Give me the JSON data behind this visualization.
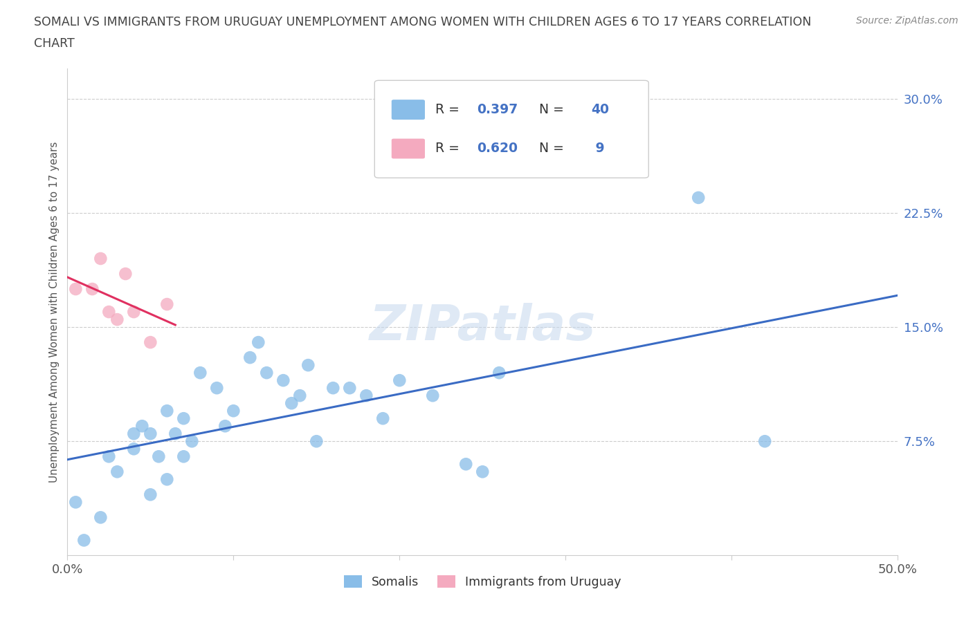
{
  "title_line1": "SOMALI VS IMMIGRANTS FROM URUGUAY UNEMPLOYMENT AMONG WOMEN WITH CHILDREN AGES 6 TO 17 YEARS CORRELATION",
  "title_line2": "CHART",
  "source": "Source: ZipAtlas.com",
  "ylabel": "Unemployment Among Women with Children Ages 6 to 17 years",
  "xlim": [
    0,
    0.5
  ],
  "ylim": [
    0,
    0.32
  ],
  "yticks_right": [
    0.075,
    0.15,
    0.225,
    0.3
  ],
  "yticklabels_right": [
    "7.5%",
    "15.0%",
    "22.5%",
    "30.0%"
  ],
  "somali_color": "#89BDE8",
  "uruguay_color": "#F4AABF",
  "line_blue_color": "#3A6BC4",
  "line_pink_color": "#E03060",
  "line_pink_dash_color": "#E8A0B8",
  "watermark_text": "ZIPatlas",
  "legend_R_somali": "0.397",
  "legend_N_somali": "40",
  "legend_R_uruguay": "0.620",
  "legend_N_uruguay": " 9",
  "somali_x": [
    0.005,
    0.01,
    0.02,
    0.025,
    0.03,
    0.04,
    0.04,
    0.045,
    0.05,
    0.05,
    0.055,
    0.06,
    0.06,
    0.065,
    0.07,
    0.07,
    0.075,
    0.08,
    0.09,
    0.095,
    0.1,
    0.11,
    0.115,
    0.12,
    0.13,
    0.135,
    0.14,
    0.145,
    0.15,
    0.16,
    0.17,
    0.18,
    0.19,
    0.2,
    0.22,
    0.24,
    0.25,
    0.26,
    0.38,
    0.42
  ],
  "somali_y": [
    0.035,
    0.01,
    0.025,
    0.065,
    0.055,
    0.07,
    0.08,
    0.085,
    0.04,
    0.08,
    0.065,
    0.05,
    0.095,
    0.08,
    0.065,
    0.09,
    0.075,
    0.12,
    0.11,
    0.085,
    0.095,
    0.13,
    0.14,
    0.12,
    0.115,
    0.1,
    0.105,
    0.125,
    0.075,
    0.11,
    0.11,
    0.105,
    0.09,
    0.115,
    0.105,
    0.06,
    0.055,
    0.12,
    0.235,
    0.075
  ],
  "uruguay_x": [
    0.005,
    0.015,
    0.02,
    0.025,
    0.03,
    0.035,
    0.04,
    0.05,
    0.06
  ],
  "uruguay_y": [
    0.175,
    0.175,
    0.195,
    0.16,
    0.155,
    0.185,
    0.16,
    0.14,
    0.165
  ],
  "grid_color": "#CCCCCC",
  "background_color": "#FFFFFF",
  "title_color": "#444444",
  "axis_label_color": "#555555",
  "right_tick_color": "#4472C4",
  "legend_value_color": "#4472C4",
  "legend_text_color": "#333333",
  "source_color": "#888888"
}
